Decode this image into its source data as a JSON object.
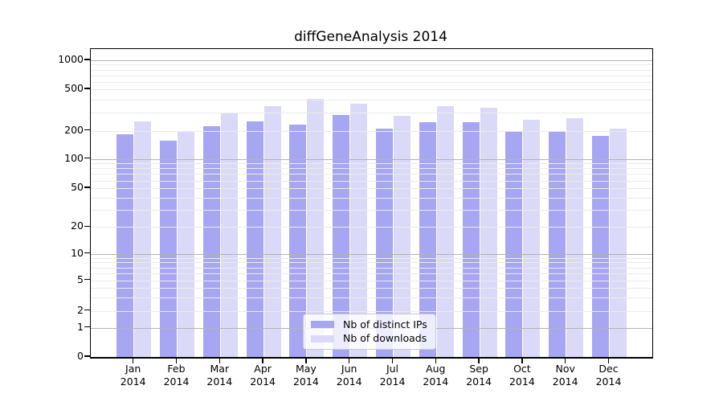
{
  "chart_data": {
    "type": "bar",
    "title": "diffGeneAnalysis 2014",
    "categories": [
      "Jan",
      "Feb",
      "Mar",
      "Apr",
      "May",
      "Jun",
      "Jul",
      "Aug",
      "Sep",
      "Oct",
      "Nov",
      "Dec"
    ],
    "x_year": "2014",
    "series": [
      {
        "name": "Nb of distinct IPs",
        "color": "#a6a6f2",
        "values": [
          185,
          155,
          220,
          245,
          230,
          285,
          210,
          240,
          240,
          195,
          200,
          175
        ]
      },
      {
        "name": "Nb of downloads",
        "color": "#dadaf8",
        "values": [
          245,
          193,
          300,
          345,
          405,
          365,
          280,
          345,
          330,
          255,
          265,
          210
        ]
      }
    ],
    "yscale": "symlog",
    "ylim": [
      0,
      1300
    ],
    "yticks": [
      0,
      1,
      2,
      5,
      10,
      20,
      50,
      100,
      200,
      500,
      1000
    ],
    "ytick_labels": [
      "0",
      "1",
      "2",
      "5",
      "10",
      "20",
      "50",
      "100",
      "200",
      "500",
      "1000"
    ],
    "grid": "both",
    "legend_position": "lower center",
    "colors": {
      "background": "#ffffff",
      "axis": "#000000",
      "grid_major": "#b3b3b3",
      "grid_minor": "#ebebeb",
      "legend_border": "#c9c9c9"
    }
  }
}
